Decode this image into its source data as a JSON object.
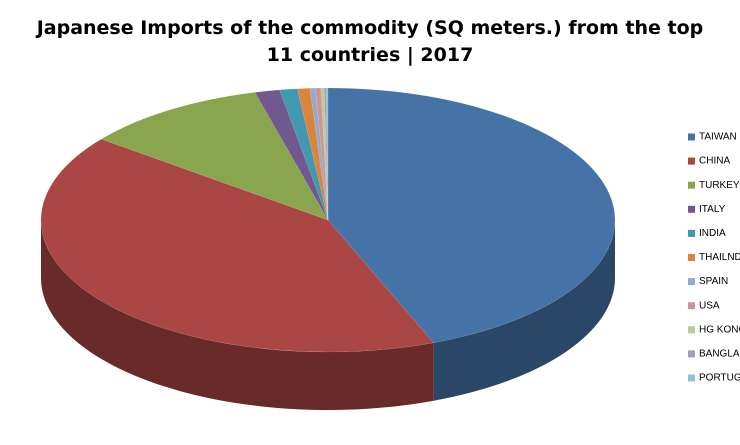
{
  "chart_data": {
    "type": "pie",
    "title": "Japanese Imports of the commodity (SQ meters.) from the top 11 countries | 2017",
    "categories": [
      "TAIWAN",
      "CHINA",
      "TURKEY",
      "ITALY",
      "INDIA",
      "THAILND",
      "SPAIN",
      "USA",
      "HG KONG",
      "BANGLADESH",
      "PORTUGAL"
    ],
    "values": [
      44,
      41.5,
      10.4,
      1.4,
      1,
      0.7,
      0.3,
      0.3,
      0.2,
      0.1,
      0.1
    ],
    "colors": [
      "#4572a7",
      "#aa4643",
      "#89a54e",
      "#71588f",
      "#4198af",
      "#db843d",
      "#93a9cf",
      "#d19392",
      "#b9cd96",
      "#a99bbd",
      "#92c3d4"
    ],
    "legend": "right"
  }
}
